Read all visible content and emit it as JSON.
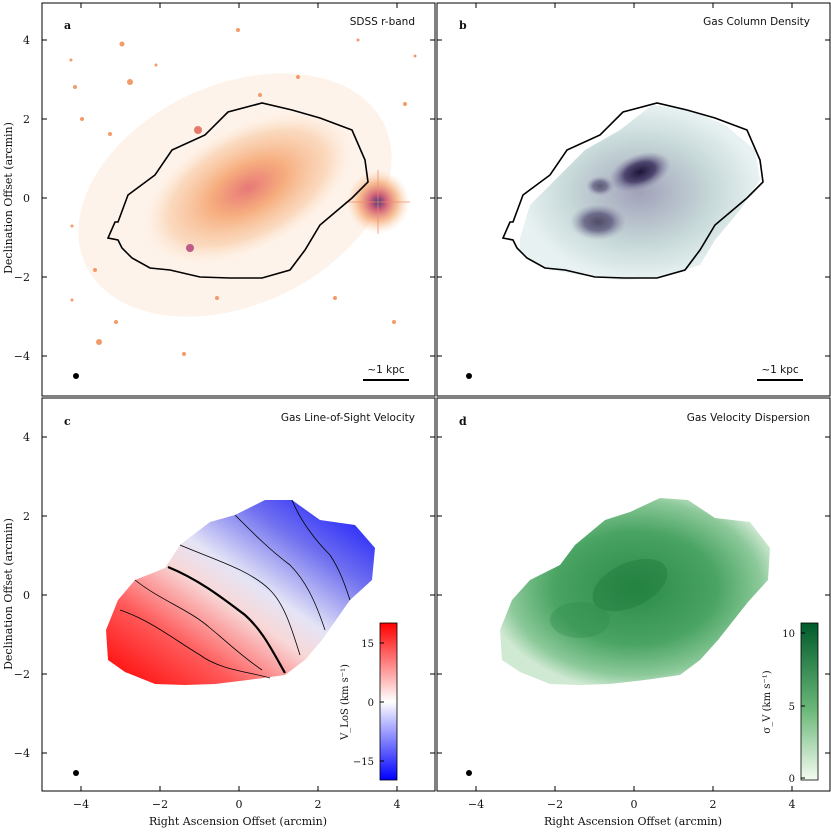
{
  "figure": {
    "y_axis_label": "Declination Offset (arcmin)",
    "x_axis_label": "Right Ascension Offset (arcmin)",
    "panels": [
      {
        "letter": "a",
        "title": "SDSS r-band",
        "scalebar": "~1 kpc"
      },
      {
        "letter": "b",
        "title": "Gas Column Density",
        "scalebar": "~1 kpc"
      },
      {
        "letter": "c",
        "title": "Gas Line-of-Sight Velocity",
        "scalebar": ""
      },
      {
        "letter": "d",
        "title": "Gas Velocity Dispersion",
        "scalebar": ""
      }
    ],
    "x_ticks": [
      "−4",
      "−2",
      "0",
      "2",
      "4"
    ],
    "y_ticks": [
      "4",
      "2",
      "0",
      "−2",
      "−4"
    ],
    "velocity_colorbar": {
      "label": "V_LoS (km s⁻¹)",
      "ticks": [
        "15",
        "0",
        "−15"
      ]
    },
    "dispersion_colorbar": {
      "label": "σ_V (km s⁻¹)",
      "ticks": [
        "10",
        "5",
        "0"
      ]
    },
    "colors": {
      "optical": "#f39a5a",
      "column": "#3a3360",
      "vel_red": "#ff0000",
      "vel_blue": "#1010ff",
      "disp_green": "#1a7a3a"
    }
  }
}
